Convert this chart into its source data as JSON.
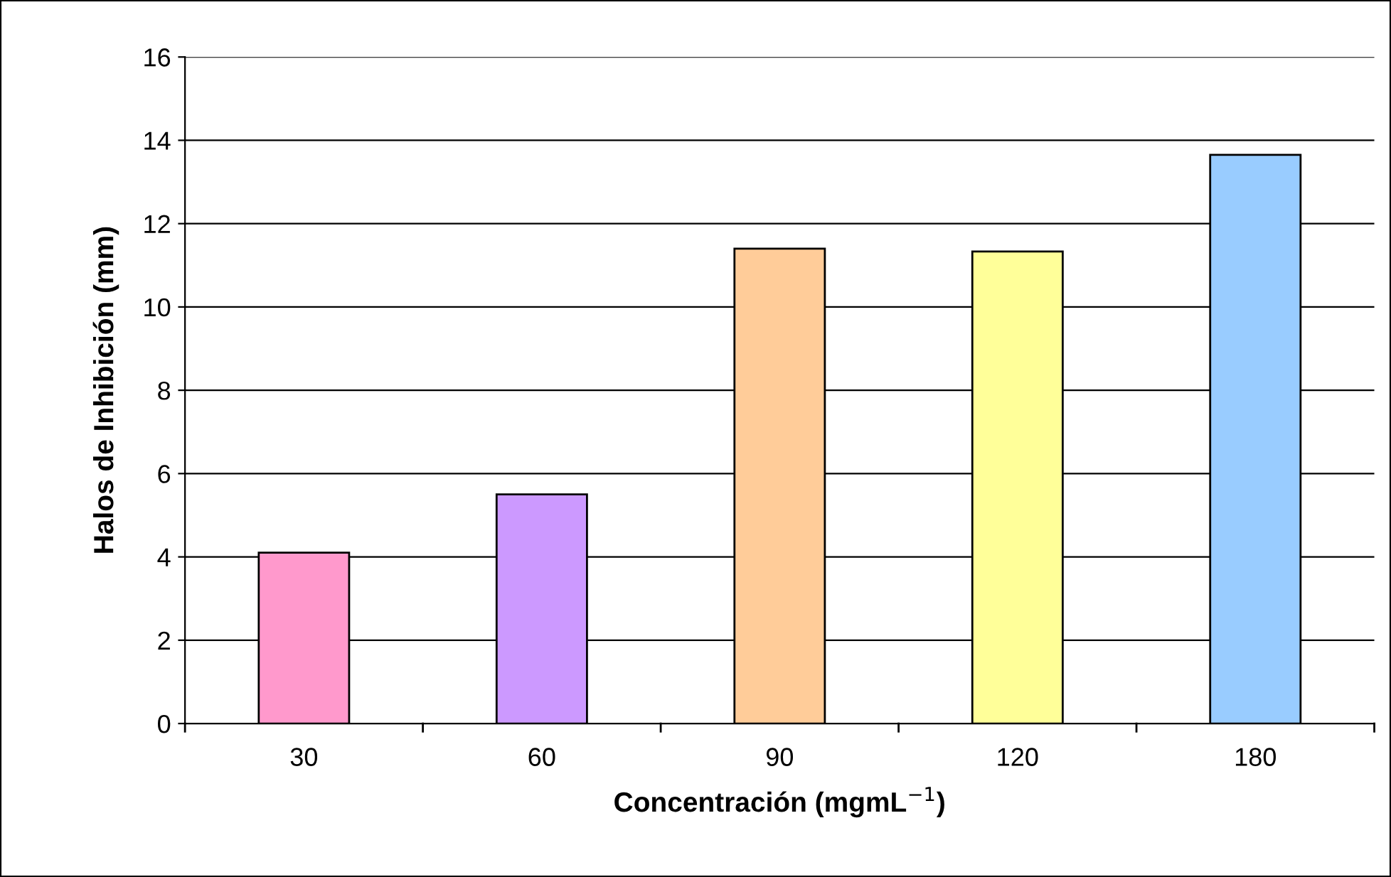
{
  "chart_data": {
    "type": "bar",
    "xlabel": "Concentración (mgmL$^{−1}$)",
    "ylabel": "Halos de Inhibición (mm)",
    "categories": [
      "30",
      "60",
      "90",
      "120",
      "180"
    ],
    "values": [
      4.1,
      5.5,
      11.4,
      11.33,
      13.65
    ],
    "colors": [
      "#ff99cc",
      "#cc99ff",
      "#ffcc99",
      "#ffff99",
      "#99ccff"
    ],
    "ylim": [
      0,
      16
    ],
    "yticks": [
      0,
      2,
      4,
      6,
      8,
      10,
      12,
      14,
      16
    ],
    "grid": "y",
    "legend": false
  }
}
